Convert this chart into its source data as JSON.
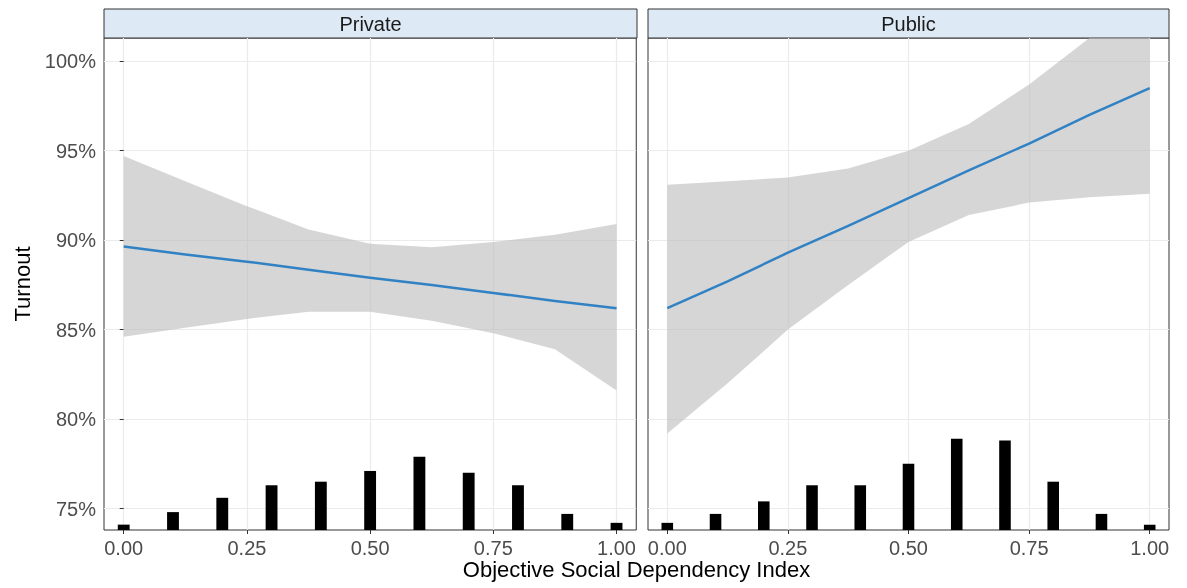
{
  "chart_data": [
    {
      "type": "bar",
      "title": "Private",
      "xlabel": "Objective Social Dependency Index",
      "ylabel": "Turnout",
      "grid": true,
      "marker": "none",
      "xlim": [
        -0.04,
        1.04
      ],
      "xticks": [
        {
          "value": 0,
          "label": "0.00"
        },
        {
          "value": 0.25,
          "label": "0.25"
        },
        {
          "value": 0.5,
          "label": "0.50"
        },
        {
          "value": 0.75,
          "label": "0.75"
        },
        {
          "value": 1,
          "label": "1.00"
        }
      ],
      "ylim": [
        73.8,
        101.3
      ],
      "yticks": [
        {
          "value": 75,
          "label": "75%"
        },
        {
          "value": 80,
          "label": "80%"
        },
        {
          "value": 85,
          "label": "85%"
        },
        {
          "value": 90,
          "label": "90%"
        },
        {
          "value": 95,
          "label": "95%"
        },
        {
          "value": 100,
          "label": "100%"
        }
      ],
      "x": [
        0,
        0.1,
        0.2,
        0.3,
        0.4,
        0.5,
        0.6,
        0.7,
        0.8,
        0.9,
        1
      ],
      "series": [
        {
          "color": "#000000",
          "values": [
            74.1,
            74.8,
            75.6,
            76.3,
            76.5,
            77.1,
            77.9,
            77.0,
            76.3,
            74.7,
            74.2
          ]
        },
        {
          "type": "line",
          "color": "#3182c4",
          "x": [
            0,
            0.125,
            0.25,
            0.375,
            0.5,
            0.625,
            0.75,
            0.875,
            1
          ],
          "values": [
            89.65,
            89.2,
            88.8,
            88.35,
            87.9,
            87.5,
            87.05,
            86.6,
            86.2
          ],
          "lower": [
            84.6,
            85.1,
            85.6,
            86.0,
            86.0,
            85.5,
            84.8,
            83.9,
            81.6
          ],
          "upper": [
            94.7,
            93.3,
            91.9,
            90.6,
            89.8,
            89.6,
            89.9,
            90.3,
            90.9
          ]
        }
      ]
    },
    {
      "type": "bar",
      "title": "Public",
      "tick_labels": "x",
      "grid": true,
      "marker": "none",
      "xlim": [
        -0.04,
        1.04
      ],
      "xticks": [
        {
          "value": 0,
          "label": "0.00"
        },
        {
          "value": 0.25,
          "label": "0.25"
        },
        {
          "value": 0.5,
          "label": "0.50"
        },
        {
          "value": 0.75,
          "label": "0.75"
        },
        {
          "value": 1,
          "label": "1.00"
        }
      ],
      "ylim": [
        73.8,
        101.3
      ],
      "yticks": [
        75,
        80,
        85,
        90,
        95,
        100
      ],
      "x": [
        0,
        0.1,
        0.2,
        0.3,
        0.4,
        0.5,
        0.6,
        0.7,
        0.8,
        0.9,
        1
      ],
      "series": [
        {
          "color": "#000000",
          "values": [
            74.2,
            74.7,
            75.4,
            76.3,
            76.3,
            77.5,
            78.9,
            78.8,
            76.5,
            74.7,
            74.1
          ]
        },
        {
          "type": "line",
          "color": "#3182c4",
          "x": [
            0,
            0.125,
            0.25,
            0.375,
            0.5,
            0.625,
            0.75,
            0.875,
            1
          ],
          "values": [
            86.2,
            87.7,
            89.3,
            90.8,
            92.35,
            93.9,
            95.4,
            97.0,
            98.5
          ],
          "lower": [
            79.2,
            82.0,
            85.0,
            87.5,
            89.9,
            91.4,
            92.1,
            92.4,
            92.6
          ],
          "upper": [
            93.1,
            93.3,
            93.5,
            94.0,
            95.0,
            96.5,
            98.7,
            101.3,
            101.3
          ]
        }
      ]
    }
  ]
}
